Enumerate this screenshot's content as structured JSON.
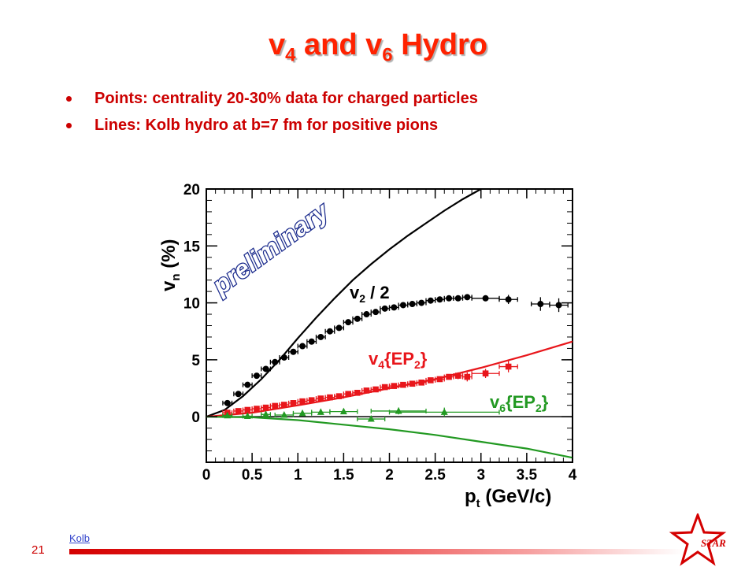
{
  "slide": {
    "title_a": "v",
    "title_a_sub": "4",
    "title_b": " and v",
    "title_b_sub": "6",
    "title_c": " Hydro",
    "bullets": [
      "Points: centrality 20-30% data for charged particles",
      "Lines: Kolb hydro at b=7 fm for positive pions"
    ],
    "page_number": "21",
    "footer_link": "Kolb",
    "logo_text": "STAR"
  },
  "colors": {
    "title": "#ff2200",
    "bullet_text": "#cc0000",
    "v2": "#000000",
    "v4": "#e8161b",
    "v6": "#229922",
    "watermark": "#1a2a8c"
  },
  "chart_data": {
    "type": "scatter",
    "xlim": [
      0,
      4
    ],
    "ylim": [
      -4,
      20
    ],
    "x_ticks": [
      0,
      0.5,
      1,
      1.5,
      2,
      2.5,
      3,
      3.5,
      4
    ],
    "y_ticks": [
      0,
      5,
      10,
      15,
      20
    ],
    "xlabel": "p_t (GeV/c)",
    "xlabel_main": "p",
    "xlabel_sub": "t",
    "xlabel_rest": " (GeV/c)",
    "ylabel": "v_n (%)",
    "ylabel_main": "v",
    "ylabel_sub": "n",
    "ylabel_rest": " (%)",
    "watermark": "preliminary",
    "labels": {
      "v2": {
        "main": "v",
        "sub": "2",
        "rest": " / 2"
      },
      "v4": {
        "main": "v",
        "sub": "4",
        "rest": "{EP",
        "sub2": "2",
        "end": "}"
      },
      "v6": {
        "main": "v",
        "sub": "6",
        "rest": "{EP",
        "sub2": "2",
        "end": "}"
      }
    },
    "series": [
      {
        "key": "v2_data",
        "name": "v2 / 2",
        "marker": "circle",
        "x": [
          0.23,
          0.35,
          0.45,
          0.55,
          0.65,
          0.75,
          0.85,
          0.95,
          1.05,
          1.15,
          1.25,
          1.35,
          1.45,
          1.55,
          1.65,
          1.75,
          1.85,
          1.95,
          2.05,
          2.15,
          2.25,
          2.35,
          2.45,
          2.55,
          2.65,
          2.75,
          2.85,
          3.05,
          3.3,
          3.65,
          3.85
        ],
        "y": [
          1.2,
          2.0,
          2.8,
          3.6,
          4.2,
          4.8,
          5.2,
          5.7,
          6.2,
          6.6,
          7.0,
          7.5,
          7.8,
          8.3,
          8.6,
          9.0,
          9.2,
          9.5,
          9.6,
          9.8,
          9.9,
          10.0,
          10.2,
          10.3,
          10.4,
          10.4,
          10.5,
          10.4,
          10.3,
          9.9,
          9.8
        ],
        "xerr": [
          0.05,
          0.05,
          0.05,
          0.05,
          0.05,
          0.05,
          0.05,
          0.05,
          0.05,
          0.05,
          0.05,
          0.05,
          0.05,
          0.05,
          0.05,
          0.05,
          0.05,
          0.05,
          0.05,
          0.05,
          0.05,
          0.05,
          0.05,
          0.05,
          0.05,
          0.05,
          0.05,
          0.15,
          0.1,
          0.1,
          0.1
        ],
        "yerr": [
          0.1,
          0.1,
          0.1,
          0.1,
          0.1,
          0.1,
          0.1,
          0.1,
          0.1,
          0.1,
          0.1,
          0.1,
          0.1,
          0.1,
          0.1,
          0.1,
          0.1,
          0.1,
          0.1,
          0.1,
          0.1,
          0.1,
          0.1,
          0.1,
          0.1,
          0.1,
          0.1,
          0.2,
          0.4,
          0.6,
          0.6
        ]
      },
      {
        "key": "v4_data",
        "name": "v4{EP2}",
        "marker": "square",
        "x": [
          0.23,
          0.35,
          0.45,
          0.55,
          0.65,
          0.75,
          0.85,
          0.95,
          1.05,
          1.15,
          1.25,
          1.35,
          1.45,
          1.55,
          1.65,
          1.75,
          1.85,
          1.95,
          2.05,
          2.15,
          2.25,
          2.35,
          2.45,
          2.55,
          2.65,
          2.75,
          2.85,
          3.05,
          3.3
        ],
        "y": [
          0.35,
          0.5,
          0.6,
          0.7,
          0.8,
          0.95,
          1.05,
          1.2,
          1.35,
          1.45,
          1.6,
          1.7,
          1.8,
          2.0,
          2.1,
          2.3,
          2.4,
          2.6,
          2.7,
          2.8,
          2.9,
          3.0,
          3.2,
          3.3,
          3.5,
          3.6,
          3.5,
          3.8,
          4.4
        ],
        "xerr": [
          0.05,
          0.05,
          0.05,
          0.05,
          0.05,
          0.05,
          0.05,
          0.05,
          0.05,
          0.05,
          0.05,
          0.05,
          0.05,
          0.05,
          0.05,
          0.05,
          0.05,
          0.05,
          0.05,
          0.05,
          0.05,
          0.05,
          0.05,
          0.05,
          0.05,
          0.05,
          0.05,
          0.15,
          0.1
        ],
        "yerr": [
          0.1,
          0.1,
          0.1,
          0.1,
          0.1,
          0.1,
          0.1,
          0.1,
          0.1,
          0.1,
          0.1,
          0.1,
          0.1,
          0.1,
          0.1,
          0.1,
          0.1,
          0.1,
          0.1,
          0.1,
          0.1,
          0.1,
          0.1,
          0.1,
          0.2,
          0.3,
          0.4,
          0.4,
          0.5
        ]
      },
      {
        "key": "v6_data",
        "name": "v6{EP2}",
        "marker": "triangle",
        "x": [
          0.23,
          0.45,
          0.65,
          0.85,
          1.05,
          1.25,
          1.5,
          1.8,
          2.1,
          2.6
        ],
        "y": [
          0.1,
          0.05,
          0.2,
          0.15,
          0.3,
          0.4,
          0.45,
          -0.2,
          0.5,
          0.4
        ],
        "xerr": [
          0.05,
          0.05,
          0.05,
          0.1,
          0.1,
          0.1,
          0.15,
          0.15,
          0.3,
          0.6
        ],
        "yerr": [
          0.1,
          0.1,
          0.1,
          0.1,
          0.1,
          0.15,
          0.2,
          0.2,
          0.3,
          0.4
        ]
      }
    ],
    "curves": [
      {
        "key": "v2_hydro",
        "name": "v2 / 2",
        "x": [
          0,
          0.2,
          0.4,
          0.6,
          0.8,
          1.0,
          1.2,
          1.4,
          1.6,
          1.8,
          2.0,
          2.2,
          2.4,
          2.6,
          2.8,
          3.0
        ],
        "y": [
          0,
          0.6,
          1.8,
          3.3,
          5.0,
          6.9,
          8.7,
          10.4,
          12.0,
          13.4,
          14.7,
          15.9,
          17.0,
          18.1,
          19.1,
          20.0
        ]
      },
      {
        "key": "v4_hydro",
        "name": "v4{EP2}",
        "x": [
          0,
          0.5,
          1.0,
          1.5,
          2.0,
          2.5,
          3.0,
          3.5,
          4.0
        ],
        "y": [
          0,
          0.35,
          1.0,
          1.7,
          2.5,
          3.3,
          4.3,
          5.4,
          6.6
        ]
      },
      {
        "key": "v6_hydro",
        "name": "v6{EP2}",
        "x": [
          0,
          0.5,
          1.0,
          1.5,
          2.0,
          2.5,
          3.0,
          3.5,
          4.0
        ],
        "y": [
          0,
          -0.05,
          -0.3,
          -0.7,
          -1.1,
          -1.6,
          -2.2,
          -2.8,
          -3.6
        ]
      }
    ]
  }
}
